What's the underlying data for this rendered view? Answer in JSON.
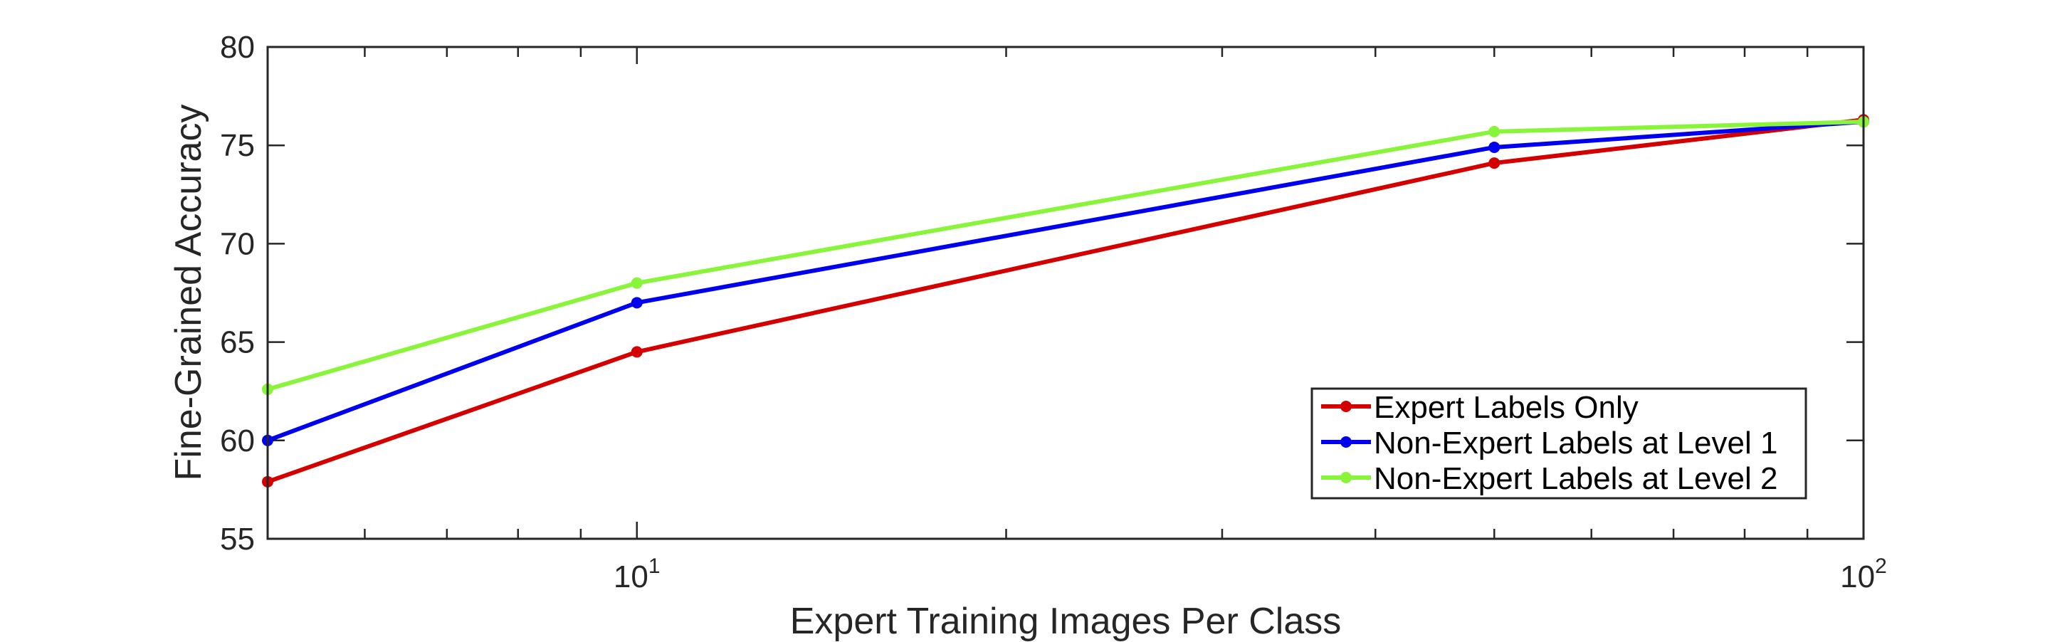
{
  "chart_data": {
    "type": "line",
    "xscale": "log",
    "xlim": [
      5,
      100
    ],
    "ylim": [
      55,
      80
    ],
    "xlabel": "Expert Training Images Per Class",
    "ylabel": "Fine-Grained Accuracy",
    "x": [
      5,
      10,
      50,
      100
    ],
    "series": [
      {
        "name": "Expert Labels Only",
        "color": "#d40000",
        "values": [
          57.9,
          64.5,
          74.1,
          76.3
        ]
      },
      {
        "name": "Non-Expert Labels at Level 1",
        "color": "#0000ee",
        "values": [
          60.0,
          67.0,
          74.9,
          76.2
        ]
      },
      {
        "name": "Non-Expert Labels at Level 2",
        "color": "#88f53a",
        "values": [
          62.6,
          68.0,
          75.7,
          76.2
        ]
      }
    ],
    "yticks": [
      55,
      60,
      65,
      70,
      75,
      80
    ],
    "xticks": [
      {
        "value": 10,
        "base": "10",
        "exp": "1"
      },
      {
        "value": 100,
        "base": "10",
        "exp": "2"
      }
    ],
    "legend_position": "lower-right",
    "grid": false
  }
}
